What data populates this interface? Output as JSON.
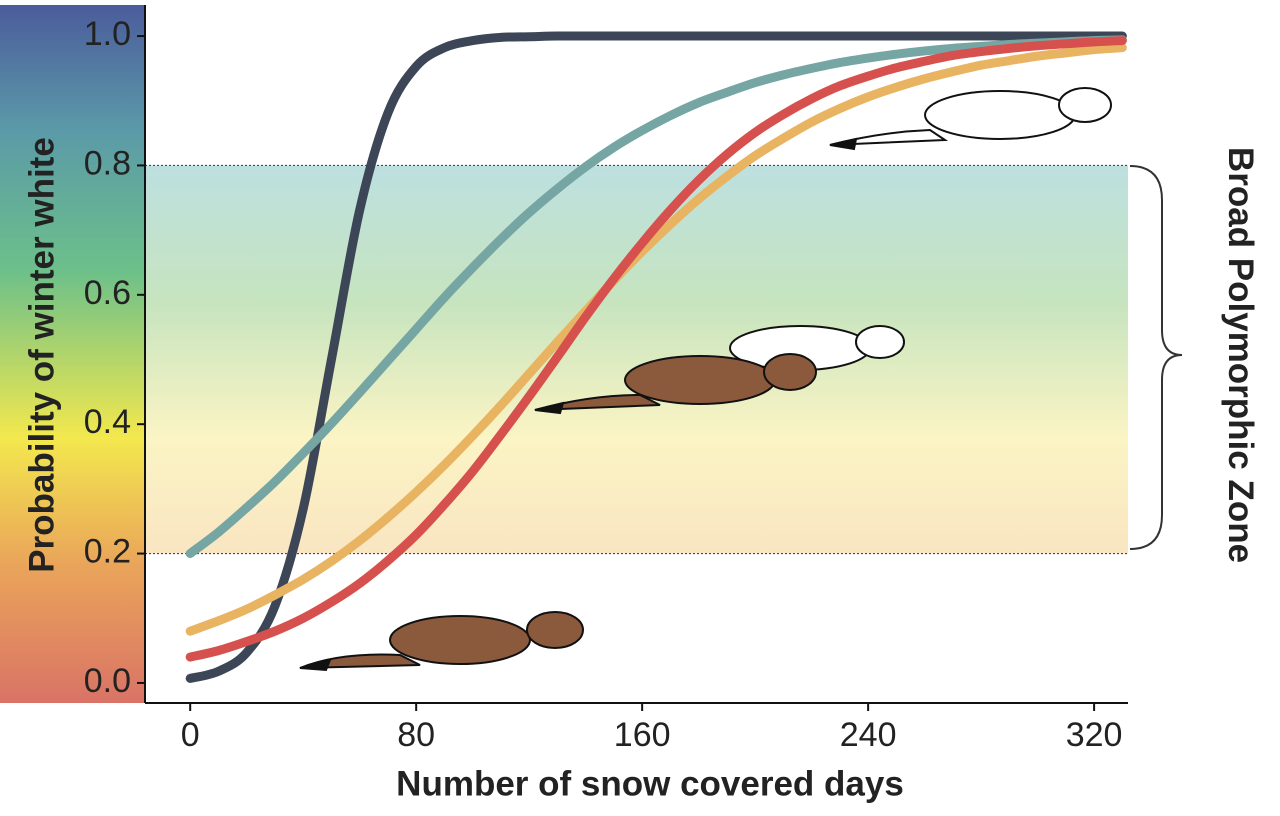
{
  "chart_data": {
    "type": "line",
    "x_label": "Number of snow covered days",
    "y_label": "Probability of winter white",
    "annotation": "Broad Polymorphic Zone",
    "zone": [
      0.2,
      0.8
    ],
    "x": [
      0,
      10,
      20,
      30,
      40,
      50,
      60,
      70,
      80,
      90,
      100,
      110,
      120,
      130,
      140,
      150,
      160,
      170,
      180,
      190,
      200,
      210,
      220,
      230,
      240,
      250,
      260,
      270,
      280,
      290,
      300,
      310,
      320,
      330
    ],
    "series": [
      {
        "color": "#3c4656",
        "values": [
          0.007,
          0.018,
          0.047,
          0.119,
          0.269,
          0.5,
          0.731,
          0.881,
          0.953,
          0.982,
          0.993,
          0.998,
          0.999,
          1,
          1,
          1,
          1,
          1,
          1,
          1,
          1,
          1,
          1,
          1,
          1,
          1,
          1,
          1,
          1,
          1,
          1,
          1,
          1,
          1
        ]
      },
      {
        "color": "#75a6a4",
        "values": [
          0.2,
          0.233,
          0.271,
          0.311,
          0.355,
          0.401,
          0.449,
          0.498,
          0.547,
          0.596,
          0.642,
          0.686,
          0.727,
          0.764,
          0.798,
          0.828,
          0.854,
          0.877,
          0.897,
          0.913,
          0.928,
          0.94,
          0.95,
          0.959,
          0.966,
          0.972,
          0.977,
          0.981,
          0.984,
          0.987,
          0.989,
          0.991,
          0.993,
          0.994
        ]
      },
      {
        "color": "#e8b462",
        "values": [
          0.08,
          0.096,
          0.114,
          0.136,
          0.16,
          0.188,
          0.22,
          0.256,
          0.295,
          0.337,
          0.382,
          0.429,
          0.478,
          0.527,
          0.575,
          0.622,
          0.667,
          0.709,
          0.748,
          0.783,
          0.815,
          0.842,
          0.867,
          0.888,
          0.906,
          0.921,
          0.934,
          0.945,
          0.955,
          0.962,
          0.969,
          0.974,
          0.979,
          0.982
        ]
      },
      {
        "color": "#d6504d",
        "values": [
          0.04,
          0.05,
          0.064,
          0.08,
          0.1,
          0.125,
          0.154,
          0.189,
          0.229,
          0.276,
          0.327,
          0.384,
          0.443,
          0.504,
          0.566,
          0.625,
          0.68,
          0.731,
          0.777,
          0.817,
          0.851,
          0.879,
          0.903,
          0.923,
          0.938,
          0.951,
          0.961,
          0.97,
          0.976,
          0.981,
          0.985,
          0.988,
          0.991,
          0.993
        ]
      }
    ],
    "xlim": [
      -16,
      332
    ],
    "ylim": [
      -0.031,
      1.048
    ],
    "xticks": [
      0,
      80,
      160,
      240,
      320
    ],
    "yticks": [
      {
        "value": 0,
        "label": "0.0"
      },
      0.2,
      0.4,
      0.6,
      0.8,
      {
        "value": 1,
        "label": "1.0"
      }
    ]
  }
}
